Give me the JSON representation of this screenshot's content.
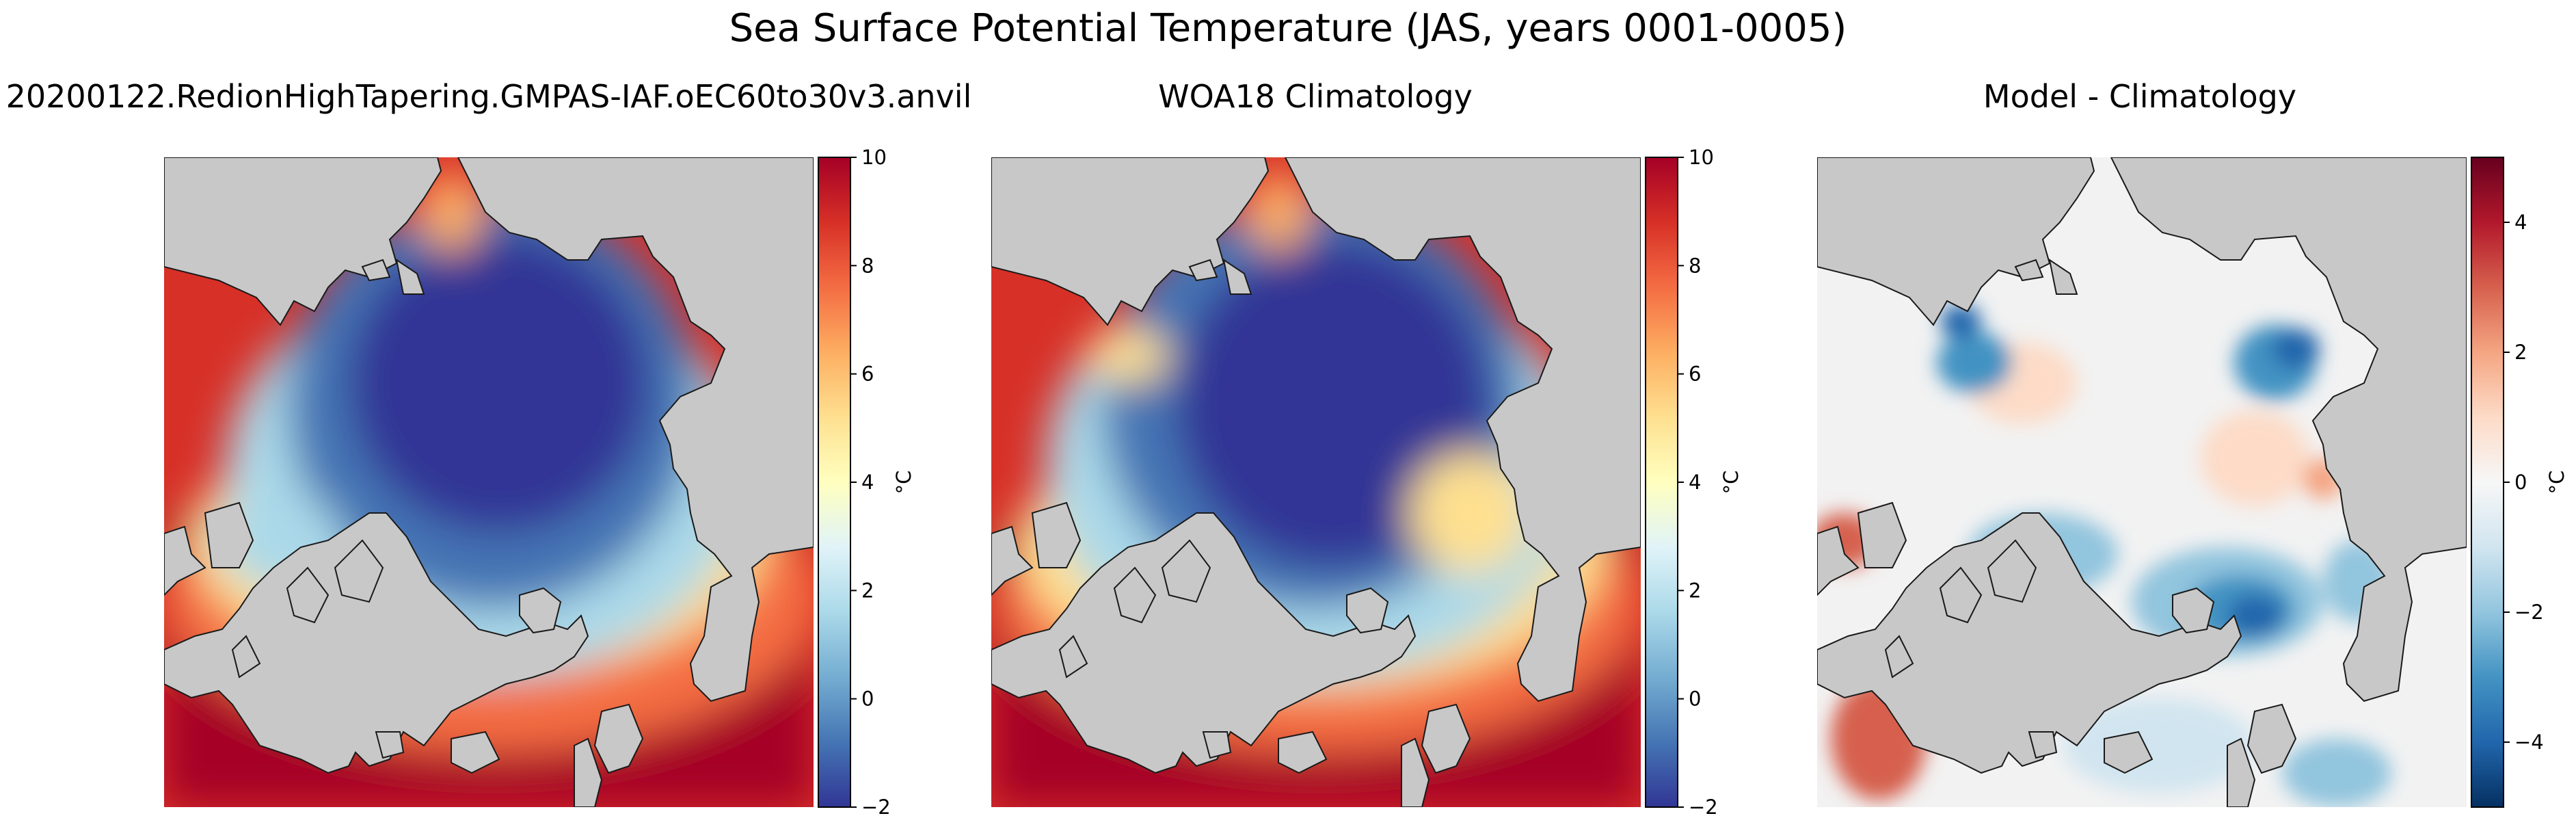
{
  "figure": {
    "title": "Sea Surface Potential Temperature (JAS, years 0001-0005)"
  },
  "chart_data": [
    {
      "type": "heatmap",
      "title": "20200122.RedionHighTapering.GMPAS-IAF.oEC60to30v3.anvil",
      "field": "model",
      "colormap": "RdYlBu_r",
      "colorbar": {
        "label": "°C",
        "range": [
          -2,
          10
        ],
        "ticks": [
          -2,
          0,
          2,
          4,
          6,
          8,
          10
        ]
      }
    },
    {
      "type": "heatmap",
      "title": "WOA18 Climatology",
      "field": "climatology",
      "colormap": "RdYlBu_r",
      "colorbar": {
        "label": "°C",
        "range": [
          -2,
          10
        ],
        "ticks": [
          -2,
          0,
          2,
          4,
          6,
          8,
          10
        ]
      }
    },
    {
      "type": "heatmap",
      "title": "Model - Climatology",
      "field": "difference",
      "colormap": "RdBu_r",
      "colorbar": {
        "label": "°C",
        "range": [
          -5,
          5
        ],
        "ticks": [
          -4,
          -2,
          0,
          2,
          4
        ]
      }
    }
  ],
  "colors": {
    "land": "#c8c8c8",
    "coastline": "#1a1a1a",
    "warm_extreme": "#a50026",
    "cold_extreme": "#313695"
  }
}
